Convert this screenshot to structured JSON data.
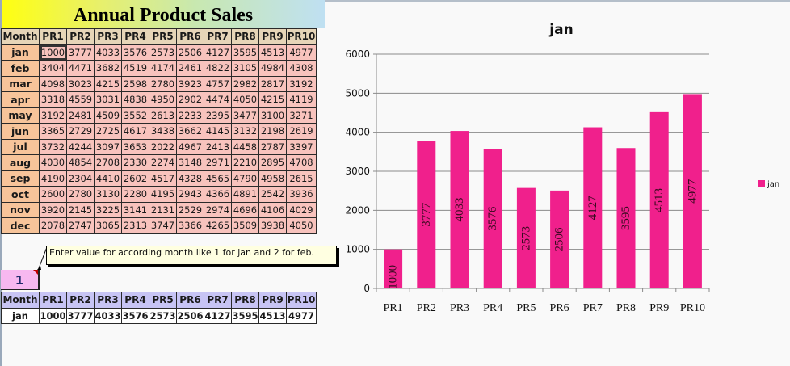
{
  "sheet": {
    "title": "Annual Product Sales",
    "headers": [
      "Month",
      "PR1",
      "PR2",
      "PR3",
      "PR4",
      "PR5",
      "PR6",
      "PR7",
      "PR8",
      "PR9",
      "PR10"
    ],
    "rows": [
      {
        "month": "jan",
        "values": [
          1000,
          3777,
          4033,
          3576,
          2573,
          2506,
          4127,
          3595,
          4513,
          4977
        ]
      },
      {
        "month": "feb",
        "values": [
          3404,
          4471,
          3682,
          4519,
          4174,
          2461,
          4822,
          3105,
          4984,
          4308
        ]
      },
      {
        "month": "mar",
        "values": [
          4098,
          3023,
          4215,
          2598,
          2780,
          3923,
          4757,
          2982,
          2817,
          3192
        ]
      },
      {
        "month": "apr",
        "values": [
          3318,
          4559,
          3031,
          4838,
          4950,
          2902,
          4474,
          4050,
          4215,
          4119
        ]
      },
      {
        "month": "may",
        "values": [
          3192,
          2481,
          4509,
          3552,
          2613,
          2233,
          2395,
          3477,
          3100,
          3271
        ]
      },
      {
        "month": "jun",
        "values": [
          3365,
          2729,
          2725,
          4617,
          3438,
          3662,
          4145,
          3132,
          2198,
          2619
        ]
      },
      {
        "month": "jul",
        "values": [
          3732,
          4244,
          3097,
          3653,
          2022,
          4967,
          2413,
          4458,
          2787,
          3397
        ]
      },
      {
        "month": "aug",
        "values": [
          4030,
          4854,
          2708,
          2330,
          2274,
          3148,
          2971,
          2210,
          2895,
          4708
        ]
      },
      {
        "month": "sep",
        "values": [
          4190,
          2304,
          4410,
          2602,
          4517,
          4328,
          4565,
          4790,
          4958,
          2615
        ]
      },
      {
        "month": "oct",
        "values": [
          2600,
          2780,
          3130,
          2280,
          4195,
          2943,
          4366,
          4891,
          2542,
          3936
        ]
      },
      {
        "month": "nov",
        "values": [
          3920,
          2145,
          3225,
          3141,
          2131,
          2529,
          2974,
          4696,
          4106,
          4029
        ]
      },
      {
        "month": "dec",
        "values": [
          2078,
          2747,
          3065,
          2313,
          3747,
          3366,
          4265,
          3509,
          3938,
          4050
        ]
      }
    ],
    "selected_cell": "1000",
    "comment": "Enter value for according month like 1 for jan and 2 for feb.",
    "input_value": "1",
    "lookup": {
      "headers": [
        "Month",
        "PR1",
        "PR2",
        "PR3",
        "PR4",
        "PR5",
        "PR6",
        "PR7",
        "PR8",
        "PR9",
        "PR10"
      ],
      "row": {
        "month": "jan",
        "values": [
          1000,
          3777,
          4033,
          3576,
          2573,
          2506,
          4127,
          3595,
          4513,
          4977
        ]
      }
    }
  },
  "colors": {
    "bar": "#f0208c",
    "grid": "#8a8a8a",
    "header_bg": "#e6d5b8",
    "month_bg": "#f7c49a",
    "cell_bg": "#f8c3bd",
    "lookup_header_bg": "#c7c4f4",
    "input_bg": "#f7b8f0",
    "tooltip_bg": "#ffffe1"
  },
  "chart_data": {
    "type": "bar",
    "title": "jan",
    "categories": [
      "PR1",
      "PR2",
      "PR3",
      "PR4",
      "PR5",
      "PR6",
      "PR7",
      "PR8",
      "PR9",
      "PR10"
    ],
    "series": [
      {
        "name": "jan",
        "values": [
          1000,
          3777,
          4033,
          3576,
          2573,
          2506,
          4127,
          3595,
          4513,
          4977
        ]
      }
    ],
    "xlabel": "",
    "ylabel": "",
    "ylim": [
      0,
      6000
    ],
    "yticks": [
      0,
      1000,
      2000,
      3000,
      4000,
      5000,
      6000
    ],
    "grid": true,
    "data_labels": "inside, rotated 270°",
    "legend_position": "right"
  }
}
